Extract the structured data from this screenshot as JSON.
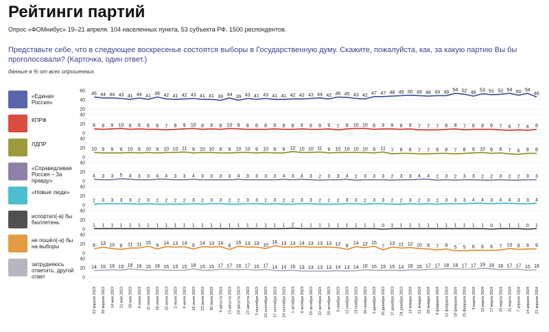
{
  "chart_data": {
    "type": "line",
    "title": "Рейтинги партий",
    "subtitle": "Опрос «ФОМнибус» 19–21 апреля. 104 населенных пункта, 53 субъекта РФ. 1500 респондентов.",
    "question": "Представьте себе, что в следующее воскресенье состоятся выборы в Государственную думу. Скажите, пожалуйста, как, за какую партию Вы бы проголосовали? (Карточка, один ответ.)",
    "note": "данные в % от всех опрошенных",
    "categories": [
      "23 апреля 2023",
      "30 апреля 2023",
      "14 мая 2023",
      "21 мая 2023",
      "28 мая 2023",
      "4 июня 2023",
      "11 июня 2023",
      "18 июня 2023",
      "25 июня 2023",
      "2 июля 2023",
      "9 июля 2023",
      "16 июля 2023",
      "23 июля 2023",
      "30 июля 2023",
      "6 августа 2023",
      "13 августа 2023",
      "20 августа 2023",
      "27 августа 2023",
      "3 сентября 2023",
      "10 сентября 2023",
      "17 сентября 2023",
      "24 сентября 2023",
      "1 октября 2023",
      "8 октября 2023",
      "15 октября 2023",
      "22 октября 2023",
      "29 октября 2023",
      "5 ноября 2023",
      "12 ноября 2023",
      "19 ноября 2023",
      "26 ноября 2023",
      "3 декабря 2023",
      "10 декабря 2023",
      "17 декабря 2023",
      "24 декабря 2023",
      "14 января 2024",
      "21 января 2024",
      "28 января 2024",
      "4 февраля 2024",
      "11 февраля 2024",
      "18 февраля 2024",
      "25 февраля 2024",
      "3 марта 2024",
      "10 марта 2024",
      "17 марта 2024",
      "25 марта 2024",
      "31 марта 2024",
      "7 апреля 2024",
      "14 апреля 2024",
      "21 апреля 2024"
    ],
    "series": [
      {
        "name": "«Единая Россия»",
        "color": "#3b4a9e",
        "ylim": [
          20,
          60
        ],
        "yticks": [
          20,
          40,
          60
        ],
        "values": [
          46,
          44,
          44,
          43,
          41,
          44,
          41,
          46,
          42,
          41,
          42,
          43,
          41,
          41,
          39,
          44,
          39,
          43,
          41,
          43,
          41,
          41,
          42,
          42,
          43,
          44,
          42,
          46,
          45,
          43,
          42,
          47,
          47,
          48,
          49,
          50,
          49,
          48,
          49,
          49,
          54,
          52,
          48,
          53,
          51,
          52,
          54,
          50,
          54,
          46
        ]
      },
      {
        "name": "КПРФ",
        "color": "#d52b1e",
        "ylim": [
          0,
          40
        ],
        "yticks": [
          0,
          20,
          40
        ],
        "values": [
          9,
          8,
          9,
          10,
          8,
          9,
          8,
          8,
          7,
          8,
          9,
          10,
          8,
          9,
          8,
          10,
          9,
          8,
          8,
          8,
          9,
          8,
          8,
          9,
          8,
          8,
          9,
          7,
          9,
          10,
          10,
          8,
          9,
          9,
          8,
          9,
          7,
          7,
          7,
          8,
          9,
          7,
          8,
          8,
          8,
          7,
          6,
          7,
          6,
          8
        ]
      },
      {
        "name": "ЛДПР",
        "color": "#8a8a1a",
        "ylim": [
          0,
          40
        ],
        "yticks": [
          0,
          20,
          40
        ],
        "values": [
          10,
          9,
          9,
          9,
          10,
          9,
          10,
          9,
          10,
          10,
          11,
          9,
          10,
          10,
          9,
          9,
          10,
          10,
          9,
          10,
          9,
          9,
          12,
          10,
          10,
          11,
          9,
          10,
          10,
          10,
          10,
          9,
          11,
          7,
          8,
          8,
          7,
          7,
          8,
          8,
          7,
          8,
          9,
          10,
          8,
          9,
          7,
          6,
          8,
          8
        ]
      },
      {
        "name": "«Справедливая Россия – За правду»",
        "color": "#7a6a9a",
        "ylim": [
          0,
          40
        ],
        "yticks": [
          0,
          20,
          40
        ],
        "values": [
          4,
          3,
          3,
          5,
          4,
          3,
          3,
          4,
          4,
          3,
          3,
          4,
          3,
          3,
          3,
          3,
          4,
          3,
          3,
          3,
          3,
          4,
          3,
          4,
          3,
          2,
          3,
          3,
          4,
          2,
          3,
          3,
          3,
          2,
          3,
          3,
          4,
          4,
          2,
          3,
          2,
          3,
          3,
          2,
          2,
          3,
          2,
          2,
          3,
          3
        ]
      },
      {
        "name": "«Новые люди»",
        "color": "#2bb3c7",
        "ylim": [
          0,
          40
        ],
        "yticks": [
          0,
          20,
          40
        ],
        "values": [
          2,
          3,
          3,
          3,
          3,
          2,
          3,
          2,
          2,
          2,
          2,
          3,
          2,
          3,
          3,
          2,
          2,
          3,
          3,
          2,
          3,
          2,
          2,
          3,
          3,
          2,
          2,
          2,
          3,
          3,
          2,
          3,
          3,
          2,
          2,
          3,
          2,
          3,
          2,
          3,
          3,
          3,
          4,
          4,
          3,
          4,
          4,
          3,
          3,
          4
        ]
      },
      {
        "name": "испортил(-а) бы бюллетень",
        "color": "#333333",
        "ylim": [
          0,
          40
        ],
        "yticks": [
          0,
          20,
          40
        ],
        "values": [
          1,
          1,
          1,
          1,
          1,
          1,
          1,
          1,
          1,
          1,
          1,
          1,
          1,
          1,
          1,
          1,
          1,
          1,
          1,
          1,
          1,
          1,
          2,
          1,
          1,
          1,
          1,
          1,
          1,
          1,
          1,
          1,
          0,
          1,
          1,
          1,
          1,
          1,
          1,
          1,
          1,
          1,
          1,
          1,
          0,
          1,
          1,
          1,
          0,
          1
        ]
      },
      {
        "name": "не пошёл(-а) бы на выборы",
        "color": "#e08a1e",
        "ylim": [
          0,
          40
        ],
        "yticks": [
          0,
          20,
          40
        ],
        "values": [
          9,
          13,
          10,
          8,
          11,
          11,
          15,
          9,
          14,
          13,
          14,
          9,
          14,
          13,
          14,
          8,
          15,
          13,
          13,
          10,
          16,
          13,
          13,
          14,
          13,
          13,
          13,
          12,
          8,
          14,
          12,
          15,
          7,
          13,
          11,
          12,
          10,
          9,
          7,
          9,
          5,
          5,
          6,
          6,
          6,
          7,
          10,
          8,
          9,
          9
        ]
      },
      {
        "name": "затрудняюсь ответить, другой ответ",
        "color": "#a9a9b8",
        "ylim": [
          0,
          40
        ],
        "yticks": [
          0,
          20,
          40
        ],
        "values": [
          14,
          15,
          16,
          15,
          18,
          16,
          15,
          16,
          15,
          15,
          15,
          18,
          15,
          15,
          17,
          17,
          16,
          17,
          15,
          17,
          14,
          14,
          15,
          13,
          13,
          13,
          13,
          14,
          13,
          14,
          16,
          15,
          15,
          15,
          14,
          16,
          15,
          17,
          17,
          18,
          18,
          17,
          17,
          19,
          18,
          16,
          17,
          17,
          15,
          16
        ]
      }
    ]
  }
}
